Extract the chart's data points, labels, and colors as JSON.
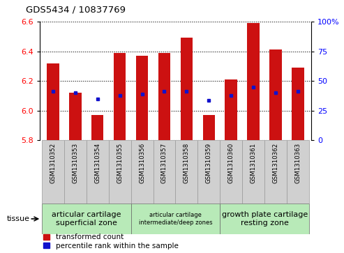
{
  "title": "GDS5434 / 10837769",
  "samples": [
    "GSM1310352",
    "GSM1310353",
    "GSM1310354",
    "GSM1310355",
    "GSM1310356",
    "GSM1310357",
    "GSM1310358",
    "GSM1310359",
    "GSM1310360",
    "GSM1310361",
    "GSM1310362",
    "GSM1310363"
  ],
  "red_values": [
    6.32,
    6.12,
    5.97,
    6.39,
    6.37,
    6.39,
    6.49,
    5.97,
    6.21,
    6.59,
    6.41,
    6.29
  ],
  "blue_values": [
    6.13,
    6.12,
    6.08,
    6.1,
    6.11,
    6.13,
    6.13,
    6.07,
    6.1,
    6.16,
    6.12,
    6.13
  ],
  "ymin": 5.8,
  "ymax": 6.6,
  "yticks_left": [
    5.8,
    6.0,
    6.2,
    6.4,
    6.6
  ],
  "yticks_right": [
    0,
    25,
    50,
    75,
    100
  ],
  "bar_color": "#cc1111",
  "dot_color": "#1111cc",
  "tissue_groups": [
    {
      "label": "articular cartilage\nsuperficial zone",
      "start": 0,
      "end": 4,
      "fontsize": 8.0
    },
    {
      "label": "articular cartilage\nintermediate/deep zones",
      "start": 4,
      "end": 8,
      "fontsize": 6.0
    },
    {
      "label": "growth plate cartilage\nresting zone",
      "start": 8,
      "end": 12,
      "fontsize": 8.0
    }
  ],
  "tissue_box_color": "#b8eab8",
  "sample_box_color": "#d0d0d0",
  "legend_red": "transformed count",
  "legend_blue": "percentile rank within the sample"
}
